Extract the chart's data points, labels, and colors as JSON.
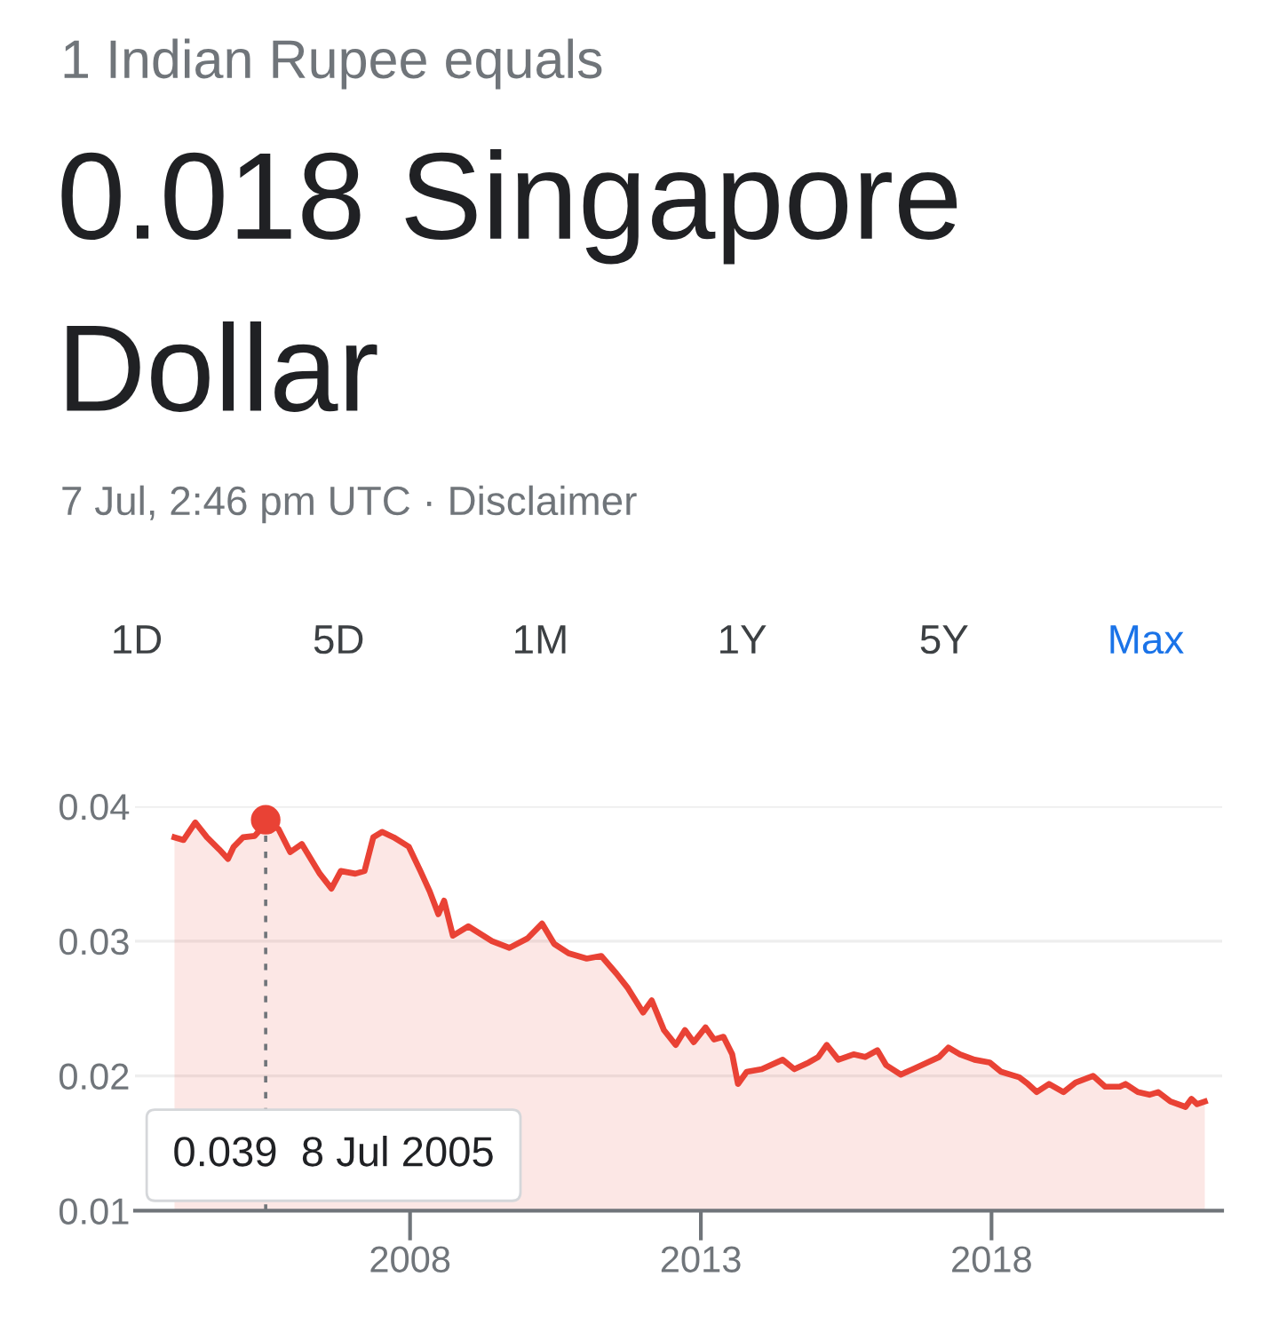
{
  "chart_data": {
    "type": "area",
    "subtitle": "1 Indian Rupee equals",
    "title": "0.018 Singapore Dollar",
    "annotations": [
      "7 Jul, 2:46 pm UTC · Disclaimer",
      "1D",
      "5D",
      "1M",
      "1Y",
      "5Y",
      "Max",
      {
        "text": "0.039  8 Jul 2005",
        "x": "2005-07-08",
        "y": 0.039
      }
    ],
    "x": [
      "2003-12-13",
      "2004-02-08",
      "2004-04-22",
      "2004-07-04",
      "2004-09-19",
      "2004-11-13",
      "2004-12-19",
      "2005-02-16",
      "2005-04-30",
      "2005-06-06",
      "2005-07-08",
      "2005-09-27",
      "2005-12-09",
      "2006-02-20",
      "2006-06-13",
      "2006-08-25",
      "2006-10-23",
      "2007-01-22",
      "2007-03-21",
      "2007-05-15",
      "2007-07-09",
      "2007-09-20",
      "2007-12-24",
      "2008-03-06",
      "2008-05-03",
      "2008-06-27",
      "2008-08-02",
      "2008-09-26",
      "2009-01-01",
      "2009-05-30",
      "2009-09-16",
      "2010-01-08",
      "2010-04-09",
      "2010-06-24",
      "2010-09-23",
      "2011-01-15",
      "2011-04-16",
      "2011-07-20",
      "2011-10-01",
      "2012-01-04",
      "2012-02-27",
      "2012-05-14",
      "2012-07-27",
      "2012-09-23",
      "2012-11-17",
      "2013-01-30",
      "2013-03-25",
      "2013-05-23",
      "2013-07-17",
      "2013-08-22",
      "2013-10-16",
      "2014-01-19",
      "2014-05-30",
      "2014-08-11",
      "2014-11-10",
      "2015-01-08",
      "2015-03-03",
      "2015-05-15",
      "2015-08-18",
      "2015-10-30",
      "2016-01-15",
      "2016-03-10",
      "2016-06-10",
      "2016-08-25",
      "2016-11-24",
      "2017-02-06",
      "2017-04-05",
      "2017-06-17",
      "2017-09-16",
      "2017-12-20",
      "2018-03-03",
      "2018-06-24",
      "2018-08-18",
      "2018-10-12",
      "2018-12-28",
      "2019-03-29",
      "2019-06-13",
      "2019-10-01",
      "2019-12-16",
      "2020-03-17",
      "2020-04-22",
      "2020-07-08",
      "2020-09-19",
      "2020-11-13",
      "2021-01-29",
      "2021-05-04",
      "2021-06-10",
      "2021-07-16",
      "2021-09-02"
    ],
    "series": [
      {
        "color": "#e94235",
        "values": [
          0.0377,
          0.0375,
          0.0388,
          0.0377,
          0.0368,
          0.0361,
          0.037,
          0.0377,
          0.0378,
          0.0383,
          0.039,
          0.0383,
          0.0366,
          0.0372,
          0.035,
          0.0339,
          0.0352,
          0.035,
          0.0352,
          0.0377,
          0.0381,
          0.0377,
          0.037,
          0.0352,
          0.0337,
          0.032,
          0.033,
          0.0304,
          0.0311,
          0.03,
          0.0295,
          0.0302,
          0.0313,
          0.0298,
          0.0291,
          0.0287,
          0.0289,
          0.0276,
          0.0265,
          0.0247,
          0.0256,
          0.0234,
          0.0223,
          0.0234,
          0.0225,
          0.0236,
          0.0227,
          0.0229,
          0.0216,
          0.0194,
          0.0203,
          0.0205,
          0.0212,
          0.0205,
          0.021,
          0.0214,
          0.0223,
          0.0212,
          0.0216,
          0.0214,
          0.0219,
          0.0208,
          0.0201,
          0.0205,
          0.021,
          0.0214,
          0.0221,
          0.0216,
          0.0212,
          0.021,
          0.0203,
          0.0199,
          0.0194,
          0.0188,
          0.0194,
          0.0188,
          0.0195,
          0.02,
          0.0192,
          0.0192,
          0.0194,
          0.0188,
          0.0186,
          0.0188,
          0.0181,
          0.0177,
          0.0183,
          0.0179,
          0.0181
        ]
      }
    ],
    "xlim": [
      "2003-04-09",
      "2021-12-20"
    ],
    "xticks": [
      "2008",
      "2013",
      "2018"
    ],
    "ylim": [
      0.01,
      0.04
    ],
    "yticks": [
      0.01,
      0.02,
      0.03,
      0.04
    ],
    "grid": "y"
  }
}
